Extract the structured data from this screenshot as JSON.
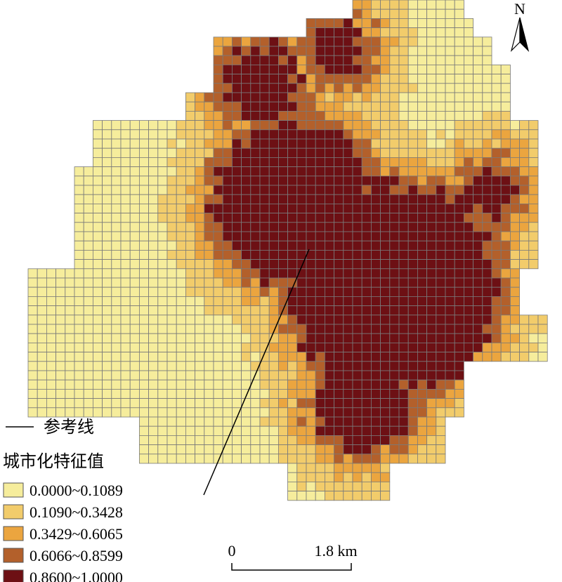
{
  "north": "N",
  "legend": {
    "reference_line": "参考线",
    "title": "城市化特征值",
    "items": [
      {
        "label": "0.0000~0.1089",
        "color": "#f6ed9c"
      },
      {
        "label": "0.1090~0.3428",
        "color": "#f2cc6b"
      },
      {
        "label": "0.3429~0.6065",
        "color": "#eba53f"
      },
      {
        "label": "0.6066~0.8599",
        "color": "#b3602b"
      },
      {
        "label": "0.8600~1.0000",
        "color": "#6d1014"
      }
    ]
  },
  "scale_bar": {
    "start": "0",
    "end": "1.8 km"
  }
}
